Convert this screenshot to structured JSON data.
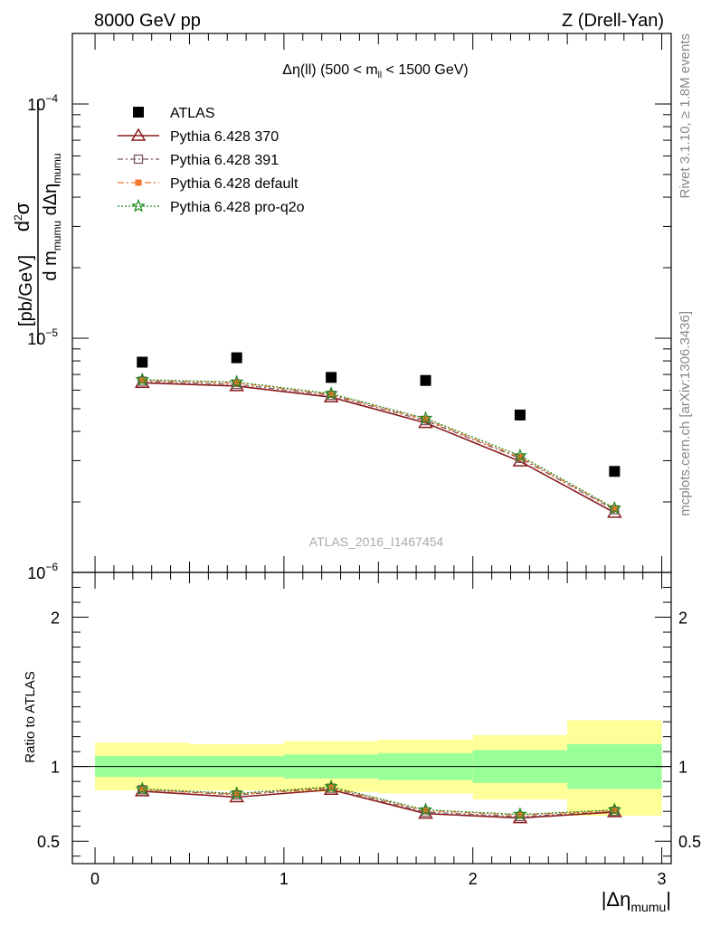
{
  "header": {
    "left": "8000 GeV pp",
    "right": "Z (Drell-Yan)"
  },
  "side_labels": {
    "rivet": "Rivet 3.1.10, ≥ 1.8M events",
    "mcplots": "mcplots.cern.ch [arXiv:1306.3436]"
  },
  "watermark": "ATLAS_2016_I1467454",
  "main_plot": {
    "title_main": "Δη(ll) (500 < m",
    "title_sub": "ll",
    "title_end": " < 1500 GeV)",
    "ylabel": "d²σ / d m_mumu dΔη_mumu [pb/GeV]",
    "yscale": "log",
    "ylim": [
      1e-06,
      0.0002
    ],
    "tick_labels": [
      {
        "value": 1e-06,
        "base": "10",
        "exp": "−6"
      },
      {
        "value": 1e-05,
        "base": "10",
        "exp": "−5"
      },
      {
        "value": 0.0001,
        "base": "10",
        "exp": "−4"
      }
    ]
  },
  "ratio_plot": {
    "ylabel": "Ratio to ATLAS",
    "ylim": [
      0.35,
      2.3
    ],
    "ticks": [
      0.5,
      1,
      2
    ],
    "tick_labels": [
      "0.5",
      "1",
      "2"
    ]
  },
  "xaxis": {
    "label_main": "|Δη",
    "label_sub": "mumu",
    "label_end": "|",
    "xlim": [
      -0.12,
      3.05
    ],
    "ticks": [
      0,
      1,
      2,
      3
    ],
    "tick_labels": [
      "0",
      "1",
      "2",
      "3"
    ]
  },
  "chart_data": {
    "type": "scatter",
    "bins": [
      [
        0,
        0.5
      ],
      [
        0.5,
        1.0
      ],
      [
        1.0,
        1.5
      ],
      [
        1.5,
        2.0
      ],
      [
        2.0,
        2.5
      ],
      [
        2.5,
        3.0
      ]
    ],
    "x": [
      0.25,
      0.75,
      1.25,
      1.75,
      2.25,
      2.75
    ],
    "atlas": {
      "name": "ATLAS",
      "values": [
        7.9e-06,
        8.25e-06,
        6.8e-06,
        6.6e-06,
        4.7e-06,
        2.7e-06
      ],
      "band_inner": [
        [
          0.93,
          1.07
        ],
        [
          0.93,
          1.07
        ],
        [
          0.92,
          1.08
        ],
        [
          0.91,
          1.09
        ],
        [
          0.89,
          1.11
        ],
        [
          0.85,
          1.15
        ]
      ],
      "band_outer": [
        [
          0.84,
          1.16
        ],
        [
          0.84,
          1.15
        ],
        [
          0.83,
          1.17
        ],
        [
          0.82,
          1.18
        ],
        [
          0.78,
          1.21
        ],
        [
          0.67,
          1.31
        ]
      ]
    },
    "series": [
      {
        "name": "Pythia 6.428 370",
        "color": "#8b1a1a",
        "dash": "",
        "marker": "triangle",
        "values": [
          6.45e-06,
          6.25e-06,
          5.6e-06,
          4.35e-06,
          2.98e-06,
          1.8e-06
        ],
        "ratio": [
          0.835,
          0.795,
          0.845,
          0.685,
          0.655,
          0.695
        ]
      },
      {
        "name": "Pythia 6.428 391",
        "color": "#7a5560",
        "dash": "6,3,2,3",
        "marker": "square-open",
        "values": [
          6.55e-06,
          6.35e-06,
          5.7e-06,
          4.45e-06,
          3.07e-06,
          1.85e-06
        ],
        "ratio": [
          0.845,
          0.81,
          0.855,
          0.695,
          0.665,
          0.7
        ]
      },
      {
        "name": "Pythia 6.428 default",
        "color": "#f07830",
        "dash": "7,3,2,3",
        "marker": "square-filled",
        "values": [
          6.6e-06,
          6.45e-06,
          5.75e-06,
          4.5e-06,
          3.1e-06,
          1.87e-06
        ],
        "ratio": [
          0.845,
          0.815,
          0.86,
          0.705,
          0.675,
          0.705
        ]
      },
      {
        "name": "Pythia 6.428 pro-q2o",
        "color": "#1a8a1a",
        "dash": "2,2",
        "marker": "star",
        "values": [
          6.65e-06,
          6.5e-06,
          5.8e-06,
          4.55e-06,
          3.15e-06,
          1.88e-06
        ],
        "ratio": [
          0.85,
          0.82,
          0.865,
          0.71,
          0.68,
          0.71
        ]
      }
    ],
    "legend": [
      "ATLAS",
      "Pythia 6.428 370",
      "Pythia 6.428 391",
      "Pythia 6.428 default",
      "Pythia 6.428 pro-q2o"
    ],
    "legend_placement": "top-left",
    "colors": {
      "band_outer": "#ffff99",
      "band_inner": "#99ff99"
    }
  }
}
